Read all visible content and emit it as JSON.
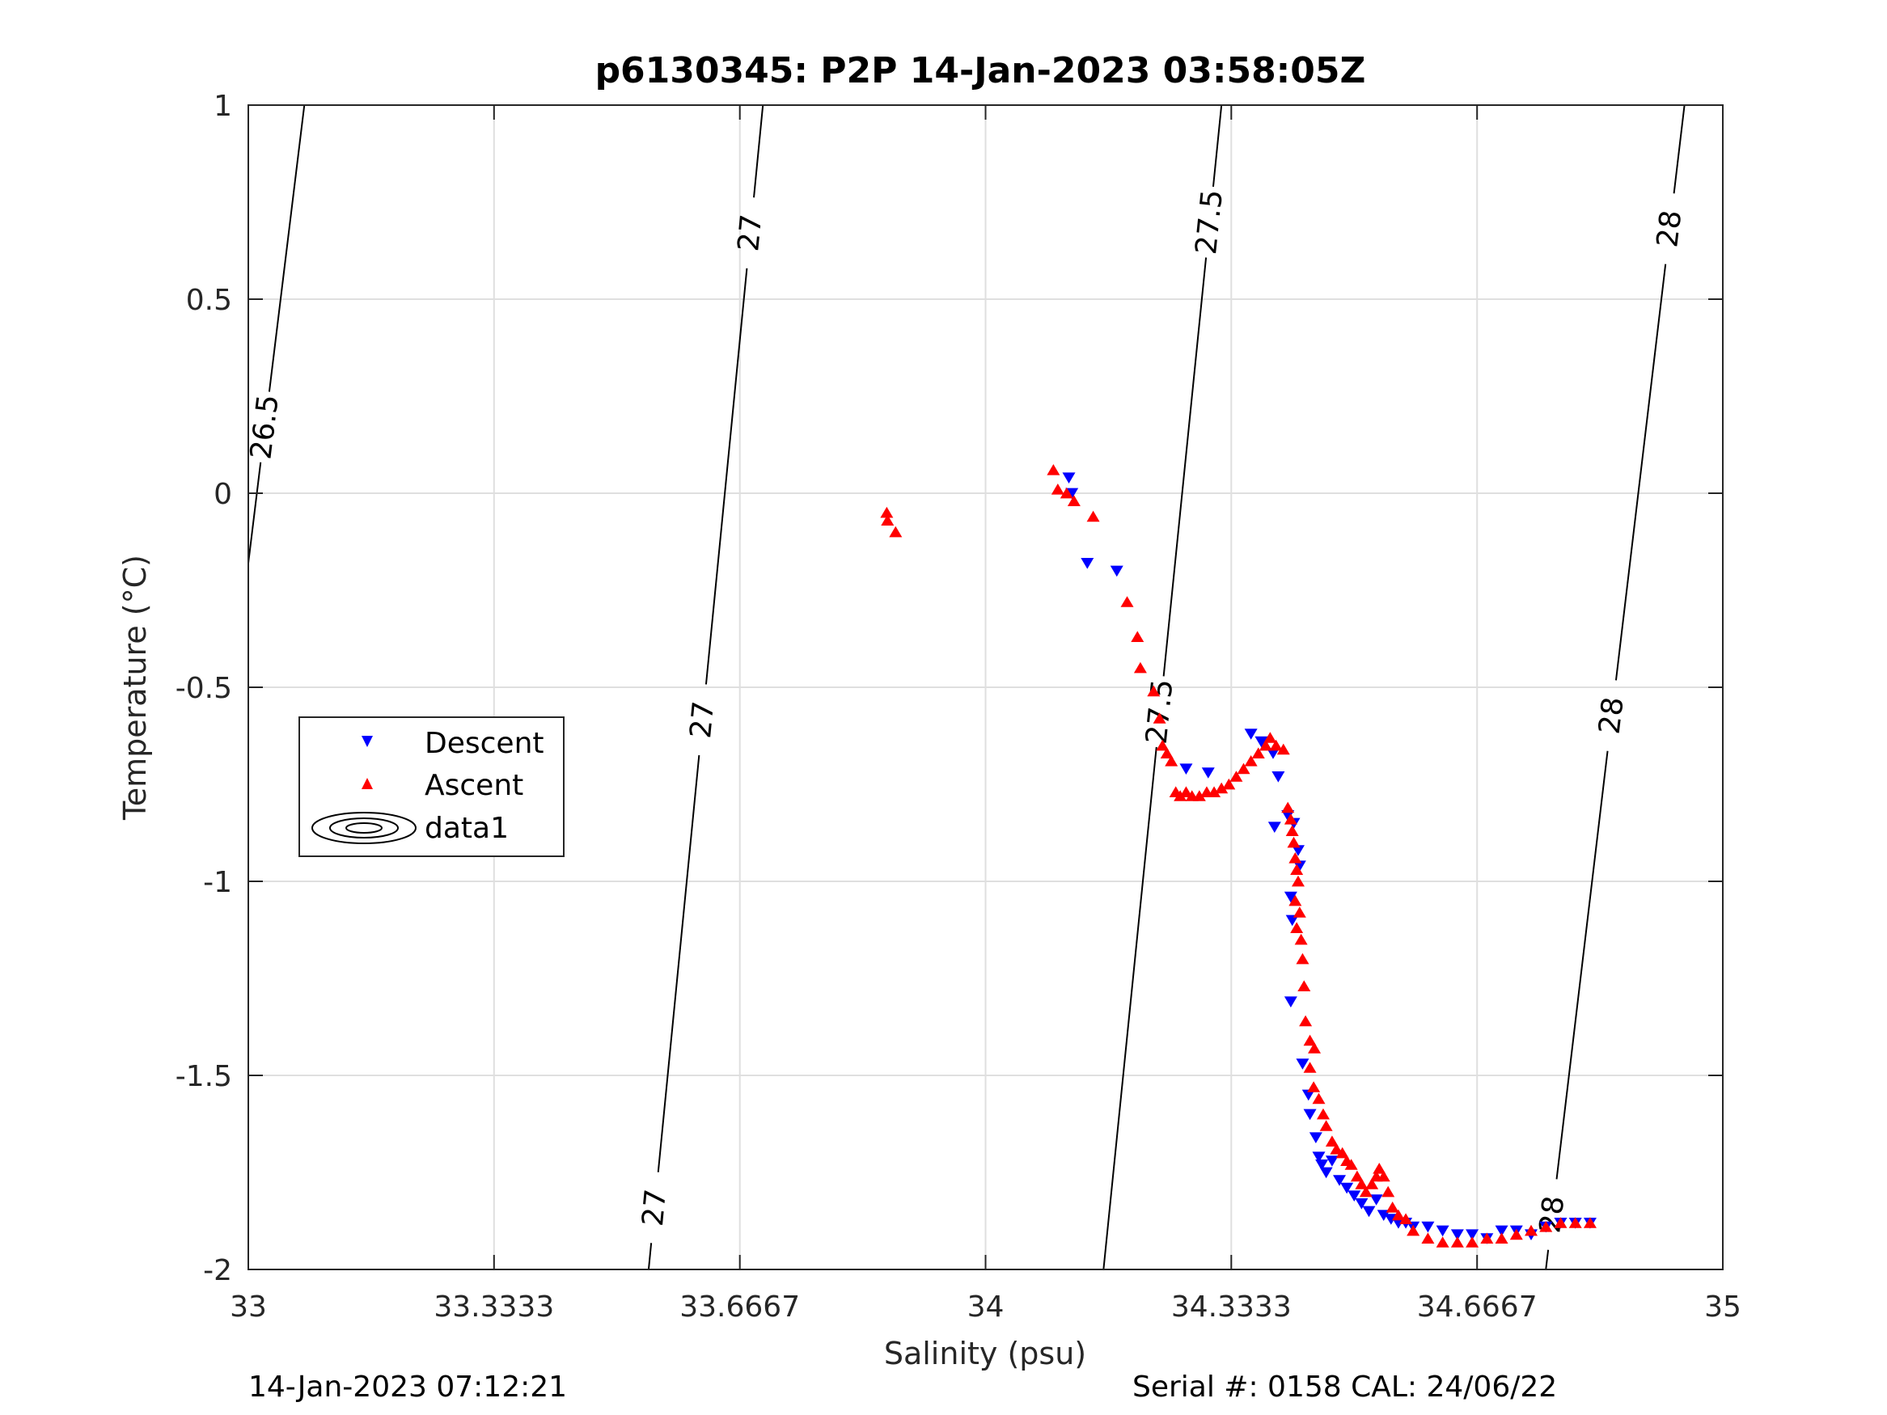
{
  "chart_data": {
    "type": "scatter",
    "title": "p6130345: P2P 14-Jan-2023 03:58:05Z",
    "xlabel": "Salinity (psu)",
    "ylabel": "Temperature (°C)",
    "xlim": [
      33,
      35
    ],
    "ylim": [
      -2,
      1
    ],
    "xticks": [
      33,
      33.3333,
      33.6667,
      34,
      34.3333,
      34.6667,
      35
    ],
    "xtick_labels": [
      "33",
      "33.3333",
      "33.6667",
      "34",
      "34.3333",
      "34.6667",
      "35"
    ],
    "yticks": [
      -2,
      -1.5,
      -1,
      -0.5,
      0,
      0.5,
      1
    ],
    "ytick_labels": [
      "-2",
      "-1.5",
      "-1",
      "-0.5",
      "0",
      "0.5",
      "1"
    ],
    "grid": true,
    "legend_position": "left-middle",
    "footer_left": "14-Jan-2023 07:12:21",
    "footer_right": "Serial #: 0158  CAL: 24/06/22",
    "isopycnals": [
      {
        "label": "26.5",
        "points": [
          [
            33.0,
            -0.18
          ],
          [
            33.076,
            1.0
          ]
        ],
        "label_at": [
          [
            33.025,
            0.17
          ]
        ]
      },
      {
        "label": "27",
        "points": [
          [
            33.543,
            -2.0
          ],
          [
            33.698,
            1.0
          ]
        ],
        "label_at": [
          [
            33.685,
            0.67
          ],
          [
            33.596,
            -0.58
          ],
          [
            33.548,
            -1.84
          ]
        ]
      },
      {
        "label": "27.5",
        "points": [
          [
            34.16,
            -2.0
          ],
          [
            34.32,
            1.0
          ]
        ],
        "label_at": [
          [
            34.296,
            0.7
          ],
          [
            34.222,
            -0.56
          ]
        ]
      },
      {
        "label": "28",
        "points": [
          [
            34.76,
            -2.0
          ],
          [
            34.948,
            1.0
          ]
        ],
        "label_at": [
          [
            34.934,
            0.68
          ],
          [
            34.836,
            -0.57
          ],
          [
            34.776,
            -1.86
          ]
        ]
      }
    ],
    "series": [
      {
        "name": "Descent",
        "color": "#0000ff",
        "marker": "triangle-down",
        "points": [
          [
            34.113,
            0.04
          ],
          [
            34.117,
            0.0
          ],
          [
            34.138,
            -0.18
          ],
          [
            34.178,
            -0.2
          ],
          [
            34.272,
            -0.71
          ],
          [
            34.302,
            -0.72
          ],
          [
            34.36,
            -0.62
          ],
          [
            34.374,
            -0.64
          ],
          [
            34.39,
            -0.67
          ],
          [
            34.397,
            -0.73
          ],
          [
            34.392,
            -0.86
          ],
          [
            34.41,
            -0.83
          ],
          [
            34.418,
            -0.85
          ],
          [
            34.424,
            -0.92
          ],
          [
            34.426,
            -0.96
          ],
          [
            34.414,
            -1.04
          ],
          [
            34.416,
            -1.1
          ],
          [
            34.414,
            -1.31
          ],
          [
            34.43,
            -1.47
          ],
          [
            34.438,
            -1.55
          ],
          [
            34.44,
            -1.6
          ],
          [
            34.448,
            -1.66
          ],
          [
            34.452,
            -1.71
          ],
          [
            34.456,
            -1.73
          ],
          [
            34.462,
            -1.75
          ],
          [
            34.47,
            -1.72
          ],
          [
            34.48,
            -1.77
          ],
          [
            34.49,
            -1.79
          ],
          [
            34.5,
            -1.81
          ],
          [
            34.51,
            -1.83
          ],
          [
            34.52,
            -1.85
          ],
          [
            34.53,
            -1.82
          ],
          [
            34.54,
            -1.86
          ],
          [
            34.55,
            -1.87
          ],
          [
            34.56,
            -1.88
          ],
          [
            34.57,
            -1.88
          ],
          [
            34.58,
            -1.89
          ],
          [
            34.6,
            -1.89
          ],
          [
            34.62,
            -1.9
          ],
          [
            34.64,
            -1.91
          ],
          [
            34.66,
            -1.91
          ],
          [
            34.68,
            -1.92
          ],
          [
            34.7,
            -1.9
          ],
          [
            34.72,
            -1.9
          ],
          [
            34.74,
            -1.91
          ],
          [
            34.76,
            -1.89
          ],
          [
            34.78,
            -1.88
          ],
          [
            34.8,
            -1.88
          ],
          [
            34.82,
            -1.88
          ]
        ]
      },
      {
        "name": "Ascent",
        "color": "#ff0000",
        "marker": "triangle-up",
        "points": [
          [
            33.866,
            -0.05
          ],
          [
            33.867,
            -0.07
          ],
          [
            33.878,
            -0.1
          ],
          [
            34.092,
            0.06
          ],
          [
            34.098,
            0.01
          ],
          [
            34.11,
            0.0
          ],
          [
            34.12,
            -0.02
          ],
          [
            34.146,
            -0.06
          ],
          [
            34.192,
            -0.28
          ],
          [
            34.206,
            -0.37
          ],
          [
            34.21,
            -0.45
          ],
          [
            34.228,
            -0.51
          ],
          [
            34.236,
            -0.58
          ],
          [
            34.24,
            -0.65
          ],
          [
            34.246,
            -0.67
          ],
          [
            34.252,
            -0.69
          ],
          [
            34.258,
            -0.77
          ],
          [
            34.264,
            -0.78
          ],
          [
            34.272,
            -0.77
          ],
          [
            34.28,
            -0.78
          ],
          [
            34.29,
            -0.78
          ],
          [
            34.3,
            -0.77
          ],
          [
            34.31,
            -0.77
          ],
          [
            34.32,
            -0.76
          ],
          [
            34.33,
            -0.75
          ],
          [
            34.34,
            -0.73
          ],
          [
            34.35,
            -0.71
          ],
          [
            34.36,
            -0.69
          ],
          [
            34.37,
            -0.67
          ],
          [
            34.38,
            -0.65
          ],
          [
            34.386,
            -0.63
          ],
          [
            34.394,
            -0.65
          ],
          [
            34.404,
            -0.66
          ],
          [
            34.41,
            -0.81
          ],
          [
            34.414,
            -0.84
          ],
          [
            34.416,
            -0.87
          ],
          [
            34.418,
            -0.9
          ],
          [
            34.42,
            -0.94
          ],
          [
            34.422,
            -0.97
          ],
          [
            34.424,
            -1.0
          ],
          [
            34.42,
            -1.05
          ],
          [
            34.426,
            -1.08
          ],
          [
            34.422,
            -1.12
          ],
          [
            34.428,
            -1.15
          ],
          [
            34.43,
            -1.2
          ],
          [
            34.432,
            -1.27
          ],
          [
            34.434,
            -1.36
          ],
          [
            34.44,
            -1.41
          ],
          [
            34.446,
            -1.43
          ],
          [
            34.44,
            -1.48
          ],
          [
            34.445,
            -1.53
          ],
          [
            34.452,
            -1.56
          ],
          [
            34.458,
            -1.6
          ],
          [
            34.462,
            -1.63
          ],
          [
            34.47,
            -1.67
          ],
          [
            34.476,
            -1.69
          ],
          [
            34.484,
            -1.7
          ],
          [
            34.49,
            -1.72
          ],
          [
            34.496,
            -1.73
          ],
          [
            34.504,
            -1.76
          ],
          [
            34.51,
            -1.78
          ],
          [
            34.516,
            -1.8
          ],
          [
            34.524,
            -1.78
          ],
          [
            34.53,
            -1.76
          ],
          [
            34.534,
            -1.74
          ],
          [
            34.54,
            -1.76
          ],
          [
            34.546,
            -1.8
          ],
          [
            34.552,
            -1.84
          ],
          [
            34.56,
            -1.86
          ],
          [
            34.57,
            -1.87
          ],
          [
            34.58,
            -1.9
          ],
          [
            34.6,
            -1.92
          ],
          [
            34.62,
            -1.93
          ],
          [
            34.64,
            -1.93
          ],
          [
            34.66,
            -1.93
          ],
          [
            34.68,
            -1.92
          ],
          [
            34.7,
            -1.92
          ],
          [
            34.72,
            -1.91
          ],
          [
            34.74,
            -1.9
          ],
          [
            34.76,
            -1.89
          ],
          [
            34.78,
            -1.88
          ],
          [
            34.8,
            -1.88
          ],
          [
            34.82,
            -1.88
          ]
        ]
      }
    ],
    "legend": [
      {
        "label": "Descent",
        "marker": "triangle-down",
        "color": "#0000ff"
      },
      {
        "label": "Ascent",
        "marker": "triangle-up",
        "color": "#ff0000"
      },
      {
        "label": "data1",
        "marker": "contour",
        "color": "#000000"
      }
    ]
  }
}
